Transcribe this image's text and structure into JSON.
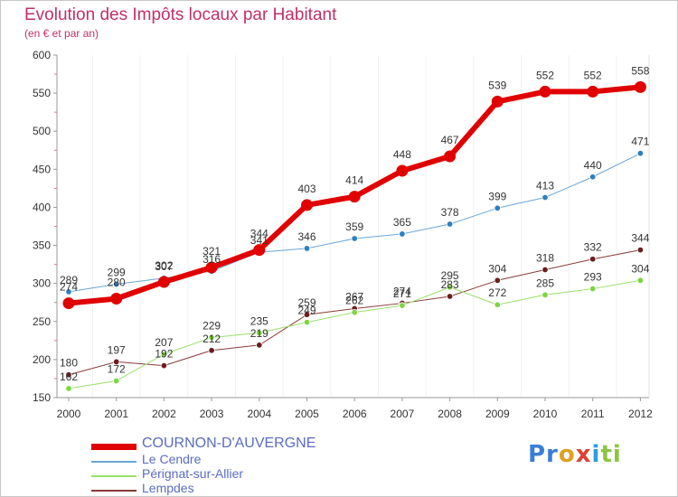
{
  "header": {
    "title": "Evolution des Impôts locaux par Habitant",
    "subtitle": "(en € et par an)"
  },
  "logo": {
    "parts": [
      "Pr",
      "o",
      "x",
      "i",
      "ti"
    ],
    "colors": [
      "#3a7dd6",
      "#e0a020",
      "#e04030",
      "#2c9de0",
      "#8cc63f"
    ]
  },
  "chart_data": {
    "type": "line",
    "title": "Evolution des Impôts locaux par Habitant",
    "subtitle": "(en € et par an)",
    "x": [
      2000,
      2001,
      2002,
      2003,
      2004,
      2005,
      2006,
      2007,
      2008,
      2009,
      2010,
      2011,
      2012
    ],
    "ylim": [
      150,
      600
    ],
    "yticks": [
      150,
      200,
      250,
      300,
      350,
      400,
      450,
      500,
      550,
      600
    ],
    "grid": false,
    "legend": "bottom-left",
    "series": [
      {
        "name": "COURNON-D'AUVERGNE",
        "color": "#e00000",
        "dot": "#e00000",
        "width": 6,
        "r": 6.5,
        "values": [
          274,
          280,
          302,
          321,
          344,
          403,
          414,
          448,
          467,
          539,
          552,
          552,
          558
        ]
      },
      {
        "name": "Le Cendre",
        "color": "#6aa6d8",
        "dot": "#2c7fc4",
        "width": 1,
        "r": 3.3,
        "values": [
          289,
          299,
          307,
          316,
          341,
          346,
          359,
          365,
          378,
          399,
          413,
          440,
          471
        ]
      },
      {
        "name": "Pérignat-sur-Allier",
        "color": "#9be06a",
        "dot": "#7dd641",
        "width": 1,
        "r": 3.3,
        "values": [
          162,
          172,
          207,
          229,
          235,
          249,
          262,
          271,
          295,
          272,
          285,
          293,
          304
        ]
      },
      {
        "name": "Lempdes",
        "color": "#8a3a3a",
        "dot": "#6b1e1e",
        "width": 1,
        "r": 3.3,
        "values": [
          180,
          197,
          192,
          212,
          219,
          259,
          267,
          274,
          283,
          304,
          318,
          332,
          344
        ]
      }
    ]
  }
}
